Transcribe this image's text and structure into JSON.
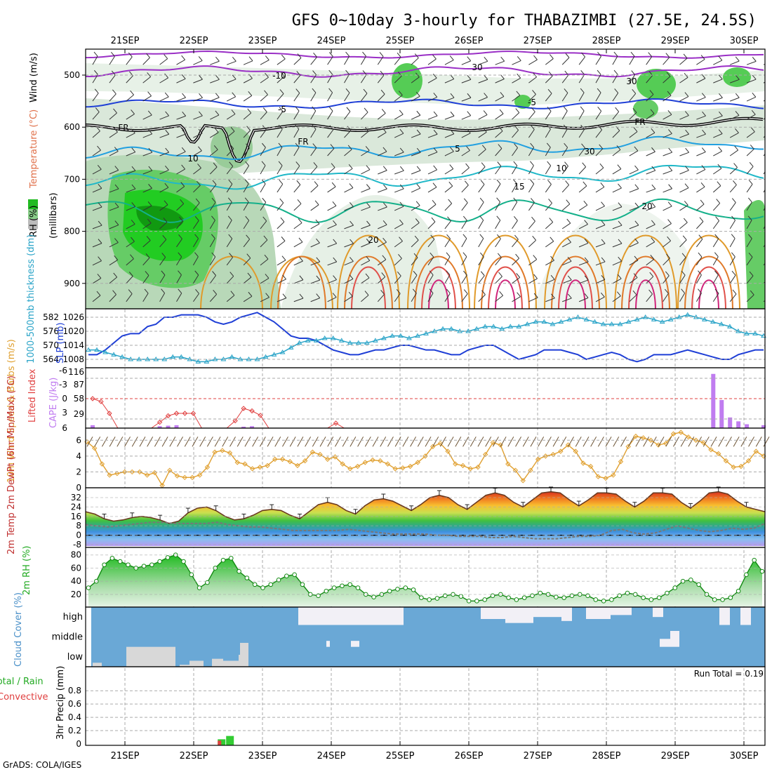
{
  "title": "GFS 0~10day 3-hourly for THABAZIMBI (27.5E, 24.5S)",
  "credit": "GrADS: COLA/IGES",
  "colors": {
    "purple": "#9a2fc6",
    "blue": "#1f3fd6",
    "cyan": "#2aa4c8",
    "teal": "#14b08a",
    "orange": "#e09a2a",
    "red": "#e0504a",
    "magenta": "#d0247a",
    "green": "#33cc33",
    "cloud": "#6aa8d6",
    "white_cloud": "#f2f0f6",
    "grey_cloud": "#d8d8d8",
    "cape": "#c07cf0",
    "lifted": "#e04040",
    "wind10m": "#e0a030"
  },
  "chart_data": [
    {
      "id": "upper-air",
      "type": "heatmap",
      "ylabel_segments": [
        "RH (%)",
        "Temperature (°C)",
        "Wind (m/s)"
      ],
      "ylabel_unit": "(millibars)",
      "x": [
        "21SEP",
        "22SEP",
        "23SEP",
        "24SEP",
        "25SEP",
        "26SEP",
        "27SEP",
        "28SEP",
        "29SEP",
        "30SEP"
      ],
      "yticks": [
        500,
        600,
        700,
        800,
        900
      ],
      "ylim": [
        950,
        450
      ],
      "contour_labels": [
        "-10",
        "-5",
        "FR",
        "FR",
        "FR",
        "-5",
        "5",
        "10",
        "15",
        "20",
        "20",
        "30",
        "30",
        "30",
        "10"
      ]
    },
    {
      "id": "thickness-slp",
      "type": "line",
      "ylabel_left": "1000-500mb thickness (dm)",
      "ylabel_right": "SLP (mb)",
      "left_ticks": [
        564,
        570,
        576,
        582
      ],
      "right_ticks": [
        1008,
        1014,
        1020,
        1026
      ],
      "series": [
        {
          "color": "#1f3fd6",
          "marker": "none",
          "values": [
            1010,
            1010,
            1012,
            1015,
            1018,
            1019,
            1019,
            1022,
            1023,
            1026,
            1026,
            1027,
            1027,
            1027,
            1026,
            1024,
            1023,
            1024,
            1026,
            1027,
            1028,
            1026,
            1024,
            1021,
            1018,
            1017,
            1017,
            1016,
            1014,
            1012,
            1011,
            1010,
            1010,
            1011,
            1012,
            1012,
            1013,
            1014,
            1014,
            1013,
            1012,
            1012,
            1011,
            1010,
            1010,
            1012,
            1013,
            1014,
            1014,
            1012,
            1010,
            1008,
            1009,
            1010,
            1012,
            1012,
            1012,
            1011,
            1010,
            1008,
            1009,
            1010,
            1011,
            1010,
            1008,
            1007,
            1008,
            1010,
            1010,
            1010,
            1011,
            1012,
            1011,
            1010,
            1009,
            1008,
            1008,
            1010,
            1011,
            1012,
            1012
          ]
        },
        {
          "color": "#2aa4c8",
          "marker": "triangle",
          "values": [
            568,
            568,
            567,
            566,
            565,
            564,
            564,
            564,
            564,
            564,
            565,
            565,
            564,
            563,
            563,
            564,
            564,
            565,
            564,
            564,
            564,
            565,
            566,
            567,
            569,
            571,
            572,
            572,
            573,
            573,
            572,
            571,
            571,
            571,
            572,
            573,
            574,
            574,
            573,
            574,
            575,
            576,
            577,
            577,
            576,
            576,
            577,
            578,
            578,
            577,
            578,
            578,
            579,
            580,
            580,
            579,
            580,
            581,
            582,
            581,
            580,
            579,
            579,
            579,
            580,
            581,
            582,
            581,
            580,
            581,
            582,
            583,
            582,
            581,
            580,
            579,
            578,
            576,
            575,
            575,
            574
          ]
        }
      ]
    },
    {
      "id": "cape-lifted",
      "type": "bar",
      "ylabel_left": "Lifted Index",
      "ylabel_right": "CAPE (J/kg)",
      "li_ticks": [
        "-3",
        "0",
        "3",
        "6",
        "-6"
      ],
      "cape_ticks": [
        "116",
        "87",
        "58",
        "29"
      ],
      "cape": [
        6,
        0,
        0,
        0,
        0,
        0,
        0,
        0,
        0,
        0,
        0,
        0,
        0,
        0,
        0,
        0,
        0,
        0,
        0,
        0,
        0,
        0,
        0,
        0,
        0,
        0,
        0,
        0,
        0,
        0,
        0,
        0,
        0,
        0,
        0,
        0,
        0,
        0,
        0,
        0,
        0,
        0,
        0,
        0,
        0,
        0,
        0,
        0,
        0,
        0,
        0,
        0,
        0,
        0,
        0,
        0,
        0,
        0,
        0,
        0,
        0,
        0,
        0,
        0,
        0,
        0,
        0,
        0,
        0,
        0,
        0,
        0,
        0,
        0,
        0,
        0,
        0,
        0,
        0,
        0,
        0
      ],
      "cape_bars": [
        [
          0,
          6
        ],
        [
          8,
          4
        ],
        [
          9,
          5
        ],
        [
          10,
          6
        ],
        [
          18,
          3
        ],
        [
          19,
          4
        ],
        [
          74,
          112
        ],
        [
          75,
          58
        ],
        [
          76,
          22
        ],
        [
          77,
          14
        ],
        [
          78,
          8
        ],
        [
          80,
          6
        ],
        [
          82,
          6
        ]
      ],
      "lifted_index": [
        0,
        0.6,
        3,
        6,
        6,
        6,
        6,
        6,
        4.8,
        3.5,
        3,
        3,
        3,
        6,
        6,
        6,
        6,
        4.5,
        2,
        2.5,
        3.4,
        6,
        6,
        6,
        6,
        6,
        6,
        6,
        6,
        5,
        6,
        6,
        6,
        6,
        6,
        6,
        6,
        6,
        6,
        6,
        6,
        6,
        6,
        6,
        6,
        6,
        6,
        6,
        6,
        6,
        6,
        6,
        6,
        6,
        6,
        6,
        6,
        6,
        6,
        6,
        6,
        6,
        6,
        6,
        6,
        6,
        6,
        6,
        6,
        6,
        6,
        6,
        6,
        6,
        6,
        6,
        6,
        6,
        6,
        6,
        6
      ]
    },
    {
      "id": "wind10m",
      "type": "line",
      "ylabel": "10m Wind Speed & Barbs (m/s)",
      "yticks": [
        0,
        2,
        4,
        6
      ],
      "ylim": [
        0,
        7
      ],
      "values": [
        5.8,
        5.0,
        3.0,
        1.6,
        1.8,
        2.0,
        2.0,
        2.0,
        1.6,
        1.9,
        0.3,
        2.2,
        1.5,
        1.3,
        1.3,
        1.6,
        2.6,
        4.5,
        4.7,
        4.4,
        3.2,
        3.0,
        2.4,
        2.6,
        2.8,
        3.6,
        3.6,
        3.3,
        2.8,
        3.4,
        4.5,
        4.2,
        3.6,
        3.9,
        3.0,
        2.4,
        2.7,
        3.2,
        3.5,
        3.4,
        3.0,
        2.4,
        2.5,
        2.7,
        3.2,
        4.0,
        5.2,
        5.6,
        4.6,
        3.0,
        2.8,
        2.4,
        2.6,
        4.2,
        5.7,
        5.4,
        3.0,
        2.2,
        0.9,
        2.2,
        3.6,
        4.0,
        4.2,
        4.6,
        5.4,
        4.6,
        3.1,
        2.7,
        1.4,
        1.2,
        1.6,
        3.3,
        5.2,
        6.5,
        6.3,
        6.0,
        5.4,
        5.6,
        6.8,
        7.0,
        6.4,
        6.0,
        5.7,
        4.8,
        4.3,
        3.4,
        2.6,
        2.7,
        3.4,
        4.6,
        4.0
      ]
    },
    {
      "id": "temp2m",
      "type": "area",
      "ylabel": "2m Temp 2m DewPt (6hr Min/Max) (°C)",
      "yticks": [
        -8,
        0,
        8,
        16,
        24,
        32
      ],
      "ylim": [
        -8,
        38
      ],
      "temp": [
        20,
        18,
        14,
        12,
        13,
        15,
        16,
        15,
        13,
        10,
        12,
        19,
        23,
        24,
        21,
        16,
        13,
        14,
        17,
        21,
        22,
        21,
        17,
        14,
        20,
        26,
        28,
        26,
        21,
        18,
        25,
        30,
        31,
        29,
        25,
        21,
        26,
        32,
        34,
        32,
        26,
        22,
        28,
        34,
        36,
        34,
        28,
        24,
        30,
        36,
        37,
        36,
        30,
        25,
        30,
        36,
        36,
        35,
        29,
        24,
        29,
        36,
        36,
        35,
        28,
        23,
        29,
        36,
        37,
        35,
        29,
        24,
        22,
        20
      ],
      "dew": [
        9,
        8,
        7,
        8,
        9,
        10,
        11,
        11,
        10,
        10,
        10,
        10,
        11,
        9,
        8,
        7,
        7,
        6,
        5,
        4,
        4,
        4,
        4,
        4,
        5,
        4,
        3,
        2,
        1,
        1,
        1,
        1,
        0,
        0,
        -1,
        -1,
        -1,
        -2,
        -2,
        -1,
        -2,
        -3,
        -3,
        -3,
        -2,
        -1,
        -1,
        0,
        4,
        5,
        2,
        1,
        2,
        5,
        8,
        6,
        4,
        3,
        4,
        6,
        5,
        6,
        10
      ]
    },
    {
      "id": "rh2m",
      "type": "area",
      "ylabel": "2m RH (%)",
      "yticks": [
        20,
        40,
        60,
        80
      ],
      "ylim": [
        5,
        85
      ],
      "values": [
        30,
        40,
        65,
        75,
        70,
        65,
        60,
        63,
        65,
        70,
        76,
        80,
        70,
        50,
        30,
        38,
        60,
        72,
        75,
        55,
        45,
        35,
        30,
        35,
        42,
        48,
        50,
        35,
        20,
        18,
        25,
        30,
        33,
        35,
        30,
        20,
        16,
        20,
        25,
        28,
        30,
        27,
        15,
        12,
        14,
        18,
        20,
        17,
        10,
        10,
        12,
        18,
        20,
        15,
        12,
        15,
        18,
        22,
        20,
        16,
        15,
        18,
        20,
        18,
        12,
        10,
        12,
        18,
        22,
        20,
        15,
        12,
        15,
        22,
        30,
        40,
        42,
        35,
        20,
        12,
        12,
        15,
        25,
        50,
        72,
        55
      ]
    },
    {
      "id": "cloud",
      "type": "heatmap",
      "ylabel": "Cloud Cover (%)",
      "levels": [
        "high",
        "middle",
        "low"
      ]
    },
    {
      "id": "precip",
      "type": "bar",
      "ylabel_left": "Total / Rain",
      "ylabel_left2": "Convective",
      "ylabel": "3hr Precip (mm)",
      "yticks": [
        "0",
        "0.2",
        "0.4",
        "0.6",
        "0.8"
      ],
      "ylim": [
        0,
        1
      ],
      "run_total": "Run Total = 0.19",
      "bars": [
        {
          "i": 15,
          "total": 0.07,
          "conv": 0.05
        },
        {
          "i": 16,
          "total": 0.12,
          "conv": 0.0
        }
      ]
    }
  ]
}
